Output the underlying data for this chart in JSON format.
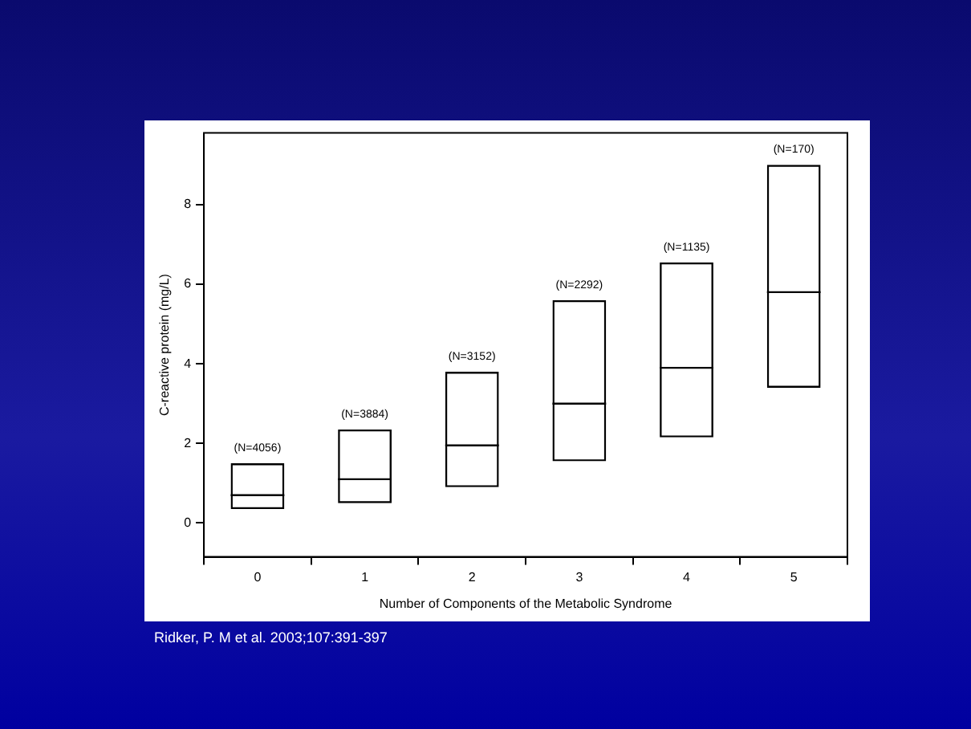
{
  "chart_data": {
    "type": "box",
    "xlabel": "Number of Components of the Metabolic Syndrome",
    "ylabel": "C-reactive protein (mg/L)",
    "categories": [
      "0",
      "1",
      "2",
      "3",
      "4",
      "5"
    ],
    "boxes": [
      {
        "low": 0.35,
        "q1": 0.35,
        "median": 0.7,
        "q3": 1.5,
        "high": 1.5
      },
      {
        "low": 0.5,
        "q1": 0.5,
        "median": 1.1,
        "q3": 2.35,
        "high": 2.35
      },
      {
        "low": 0.9,
        "q1": 0.9,
        "median": 1.95,
        "q3": 3.8,
        "high": 3.8
      },
      {
        "low": 1.55,
        "q1": 1.55,
        "median": 3.0,
        "q3": 5.6,
        "high": 5.6
      },
      {
        "low": 2.15,
        "q1": 2.15,
        "median": 3.9,
        "q3": 6.55,
        "high": 6.55
      },
      {
        "low": 3.4,
        "q1": 3.4,
        "median": 5.8,
        "q3": 9.0,
        "high": 9.0
      }
    ],
    "color": "#000000",
    "ylim": [
      -0.85,
      9.8
    ],
    "yticks": [
      0,
      2,
      4,
      6,
      8
    ],
    "grid": false,
    "legend": false,
    "annotations": [
      {
        "text": "(N=4056)",
        "x": "0",
        "y": 1.5
      },
      {
        "text": "(N=3884)",
        "x": "1",
        "y": 2.35
      },
      {
        "text": "(N=3152)",
        "x": "2",
        "y": 3.8
      },
      {
        "text": "(N=2292)",
        "x": "3",
        "y": 5.6
      },
      {
        "text": "(N=1135)",
        "x": "4",
        "y": 6.55
      },
      {
        "text": "(N=170)",
        "x": "5",
        "y": 9.0
      },
      "Ridker, P. M et al. 2003;107:391-397"
    ]
  }
}
